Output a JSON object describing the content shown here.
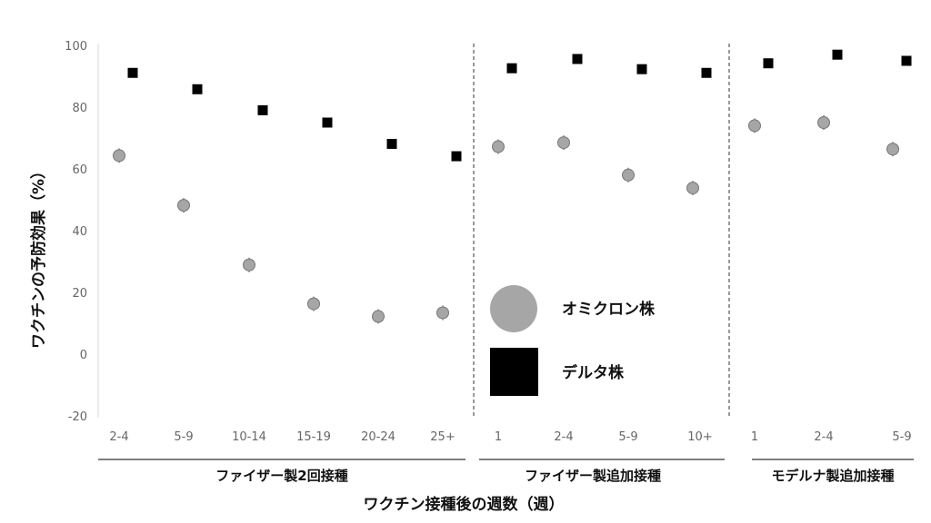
{
  "chart_data": {
    "type": "scatter",
    "ylabel": "ワクチンの予防効果（%）",
    "xlabel": "ワクチン接種後の週数（週）",
    "ylim": [
      -20,
      100
    ],
    "yticks": [
      "100",
      "80",
      "60",
      "40",
      "20",
      "0",
      "-20"
    ],
    "grid": false,
    "legend_position": "inside-center",
    "groups": [
      {
        "label": "ファイザー製2回接種",
        "categories": [
          "2-4",
          "5-9",
          "10-14",
          "15-19",
          "20-24",
          "25+"
        ]
      },
      {
        "label": "ファイザー製追加接種",
        "categories": [
          "1",
          "2-4",
          "5-9",
          "10+"
        ]
      },
      {
        "label": "モデルナ製追加接種",
        "categories": [
          "1",
          "2-4",
          "5-9"
        ]
      }
    ],
    "series": [
      {
        "name": "オミクロン株",
        "marker": "circle",
        "color": "#a6a6a6",
        "values": [
          64.3,
          48.2,
          28.9,
          16.3,
          12.2,
          13.4,
          67.2,
          68.5,
          58.0,
          53.8,
          74.0,
          75.0,
          66.4
        ]
      },
      {
        "name": "デルタ株",
        "marker": "square",
        "color": "#000000",
        "values": [
          91.1,
          85.8,
          79.0,
          75.0,
          68.1,
          64.1,
          92.6,
          95.6,
          92.3,
          91.1,
          94.2,
          97.0,
          95.0
        ]
      }
    ]
  }
}
